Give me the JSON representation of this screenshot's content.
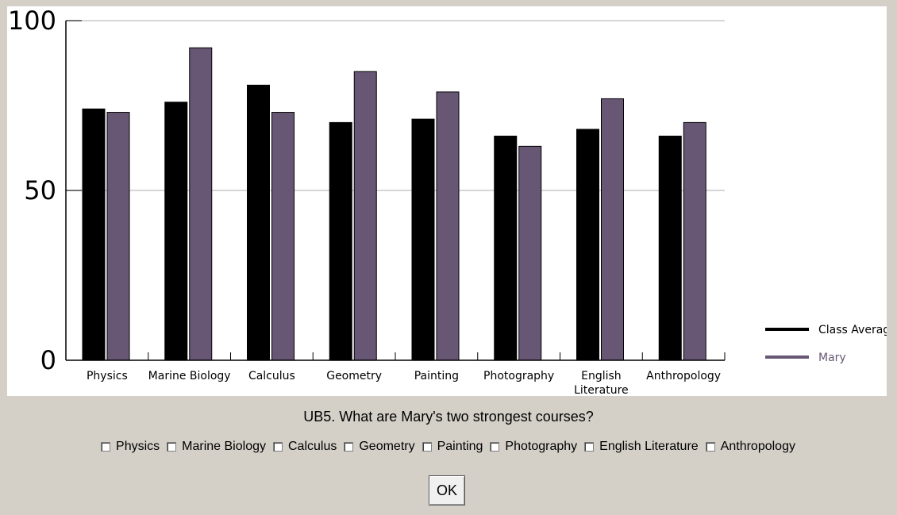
{
  "chart_data": {
    "type": "bar",
    "categories": [
      "Physics",
      "Marine Biology",
      "Calculus",
      "Geometry",
      "Painting",
      "Photography",
      "English Literature",
      "Anthropology"
    ],
    "category_label_lines": [
      [
        "Physics"
      ],
      [
        "Marine Biology"
      ],
      [
        "Calculus"
      ],
      [
        "Geometry"
      ],
      [
        "Painting"
      ],
      [
        "Photography"
      ],
      [
        "English",
        "Literature"
      ],
      [
        "Anthropology"
      ]
    ],
    "series": [
      {
        "name": "Class Average",
        "color": "#000000",
        "values": [
          74,
          76,
          81,
          70,
          71,
          66,
          68,
          66
        ]
      },
      {
        "name": "Mary",
        "color": "#675774",
        "values": [
          73,
          92,
          73,
          85,
          79,
          63,
          77,
          70
        ]
      }
    ],
    "ylim": [
      0,
      100
    ],
    "yticks": [
      0,
      50,
      100
    ],
    "grid": true,
    "legend_position": "bottom-right",
    "title": "",
    "xlabel": "",
    "ylabel": ""
  },
  "question": {
    "text": "UB5. What are Mary's two strongest courses?"
  },
  "options": [
    "Physics",
    "Marine Biology",
    "Calculus",
    "Geometry",
    "Painting",
    "Photography",
    "English Literature",
    "Anthropology"
  ],
  "ok_label": "OK"
}
